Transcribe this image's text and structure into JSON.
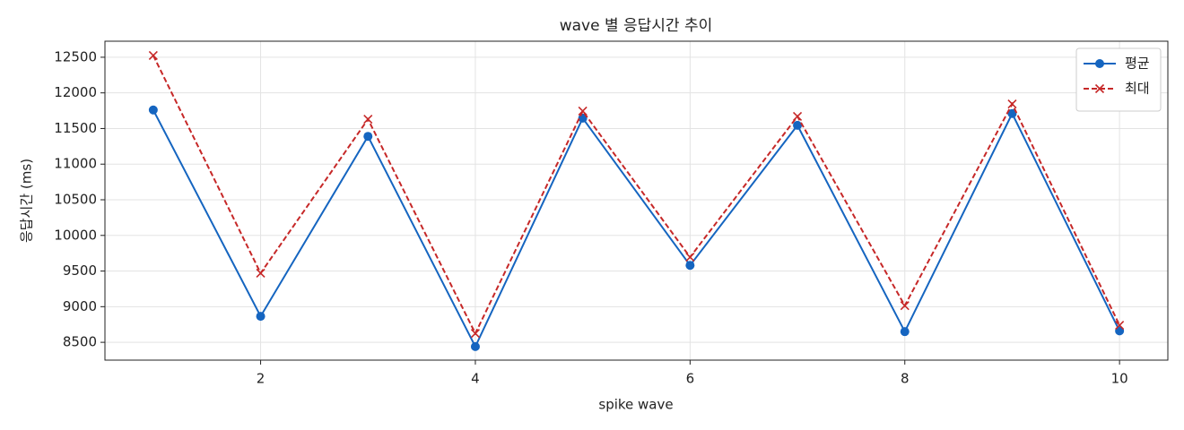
{
  "chart_data": {
    "type": "line",
    "title": "wave 별 응답시간 추이",
    "xlabel": "spike wave",
    "ylabel": "응답시간 (ms)",
    "x": [
      1,
      2,
      3,
      4,
      5,
      6,
      7,
      8,
      9,
      10
    ],
    "series": [
      {
        "name": "평균",
        "color": "#1565c0",
        "marker": "o",
        "linestyle": "solid",
        "values": [
          11760,
          8865,
          11390,
          8440,
          11645,
          9580,
          11545,
          8650,
          11710,
          8660
        ]
      },
      {
        "name": "최대",
        "color": "#c62828",
        "marker": "x",
        "linestyle": "dashed",
        "values": [
          12525,
          9470,
          11630,
          8625,
          11745,
          9695,
          11670,
          9015,
          11845,
          8740
        ]
      }
    ],
    "xlim": [
      0.55,
      10.45
    ],
    "ylim": [
      8250,
      12725
    ],
    "xticks": [
      2,
      4,
      6,
      8,
      10
    ],
    "yticks": [
      8500,
      9000,
      9500,
      10000,
      10500,
      11000,
      11500,
      12000,
      12500
    ],
    "grid": true,
    "legend": "upper right"
  }
}
